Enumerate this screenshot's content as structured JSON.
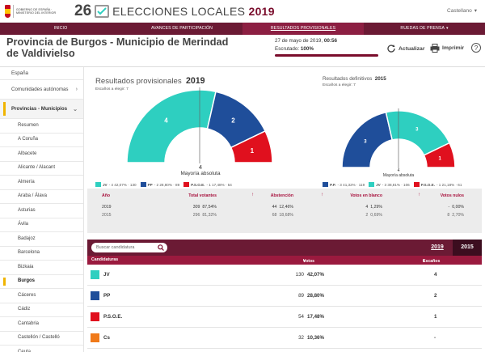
{
  "header": {
    "gov_text": "GOBIERNO DE ESPAÑA · MINISTERIO DEL INTERIOR",
    "brand_number": "26",
    "brand_elecciones": "ELECCIONES",
    "brand_locales": "LOCALES",
    "brand_year": "2019",
    "language": "Castellano"
  },
  "nav": [
    {
      "label": "INICIO"
    },
    {
      "label": "AVANCES DE PARTICIPACIÓN"
    },
    {
      "label": "RESULTADOS PROVISIONALES",
      "active": true
    },
    {
      "label": "RUEDAS DE PRENSA"
    }
  ],
  "page": {
    "title": "Provincia de Burgos - Municipio de Merindad de Valdivielso",
    "date_prefix": "27 de mayo de 2019,",
    "time": "00:56",
    "scrutiny_label": "Escrutado:",
    "scrutiny_value": "100%",
    "scrutiny_fraction": 1.0,
    "refresh_label": "Actualizar",
    "print_label": "Imprimir",
    "help_label": "?"
  },
  "sidebar": [
    {
      "label": "España",
      "level": "top"
    },
    {
      "label": "Comunidades autónomas",
      "level": "top",
      "chevron": "›"
    },
    {
      "label": "Provincias - Municipios",
      "level": "top",
      "chevron": "⌄",
      "selected": true
    },
    {
      "label": "Resumen",
      "level": "sub"
    },
    {
      "label": "A Coruña",
      "level": "sub"
    },
    {
      "label": "Albacete",
      "level": "sub"
    },
    {
      "label": "Alicante / Alacant",
      "level": "sub"
    },
    {
      "label": "Almería",
      "level": "sub"
    },
    {
      "label": "Araba / Álava",
      "level": "sub"
    },
    {
      "label": "Asturias",
      "level": "sub"
    },
    {
      "label": "Ávila",
      "level": "sub"
    },
    {
      "label": "Badajoz",
      "level": "sub"
    },
    {
      "label": "Barcelona",
      "level": "sub"
    },
    {
      "label": "Bizkaia",
      "level": "sub"
    },
    {
      "label": "Burgos",
      "level": "sub",
      "selected": true
    },
    {
      "label": "Cáceres",
      "level": "sub"
    },
    {
      "label": "Cádiz",
      "level": "sub"
    },
    {
      "label": "Cantabria",
      "level": "sub"
    },
    {
      "label": "Castellón / Castelló",
      "level": "sub"
    },
    {
      "label": "Ceuta",
      "level": "sub"
    }
  ],
  "provisional": {
    "title": "Resultados provisionales",
    "year": "2019",
    "seats_label": "Escaños a elegir: 7",
    "majority_value": "4",
    "majority_label": "Mayoría absoluta",
    "legend": [
      {
        "name": "JV",
        "text": "- 4 42,07% · 130",
        "color": "#2ecfc0"
      },
      {
        "name": "PP",
        "text": "- 2 28,80% · 89",
        "color": "#1f4e9a"
      },
      {
        "name": "P.S.O.E.",
        "text": "- 1 17,48% · 54",
        "color": "#e0101e"
      }
    ]
  },
  "definitive": {
    "title": "Resultados definitivos",
    "year": "2015",
    "seats_label": "Escaños a elegir: 7",
    "majority_value": "4",
    "majority_label": "Mayoría absoluta",
    "legend": [
      {
        "name": "P.P.",
        "text": "- 3 41,32% · 119",
        "color": "#1f4e9a"
      },
      {
        "name": "JV",
        "text": "- 3 38,81% · 106",
        "color": "#2ecfc0"
      },
      {
        "name": "P.S.O.E.",
        "text": "- 1 21,18% · 61",
        "color": "#e0101e"
      }
    ]
  },
  "summary": {
    "headers": {
      "year": "Año",
      "total": "Total votantes",
      "abst": "Abstención",
      "blank": "Votos en blanco",
      "null": "Votos nulos"
    },
    "rows": [
      {
        "year": "2019",
        "total": "309",
        "total_pct": "87,54%",
        "abst": "44",
        "abst_pct": "12,46%",
        "blank": "4",
        "blank_pct": "1,29%",
        "null": "-",
        "null_pct": "0,00%"
      },
      {
        "year": "2015",
        "total": "296",
        "total_pct": "81,32%",
        "abst": "68",
        "abst_pct": "18,68%",
        "blank": "2",
        "blank_pct": "0,69%",
        "null": "8",
        "null_pct": "2,70%"
      }
    ]
  },
  "candidates": {
    "search_placeholder": "Buscar candidatura",
    "tab_2019": "2019",
    "tab_2015": "2015",
    "col_party": "Candidaturas",
    "col_votes": "Votos",
    "col_seats": "Escaños",
    "rows": [
      {
        "party": "JV",
        "votes": "130",
        "pct": "42,07%",
        "seats": "4",
        "color": "#2ecfc0"
      },
      {
        "party": "PP",
        "votes": "89",
        "pct": "28,80%",
        "seats": "2",
        "color": "#1f4e9a"
      },
      {
        "party": "P.S.O.E.",
        "votes": "54",
        "pct": "17,48%",
        "seats": "1",
        "color": "#e0101e"
      },
      {
        "party": "Cs",
        "votes": "32",
        "pct": "10,36%",
        "seats": "-",
        "color": "#f07a1a"
      }
    ]
  },
  "chart_data": [
    {
      "type": "pie",
      "variant": "semicircle",
      "title": "Resultados provisionales 2019",
      "categories": [
        "JV",
        "PP",
        "P.S.O.E."
      ],
      "values": [
        4,
        2,
        1
      ],
      "colors": [
        "#2ecfc0",
        "#1f4e9a",
        "#e0101e"
      ]
    },
    {
      "type": "pie",
      "variant": "semicircle",
      "title": "Resultados definitivos 2015",
      "categories": [
        "P.P.",
        "JV",
        "P.S.O.E."
      ],
      "values": [
        3,
        3,
        1
      ],
      "colors": [
        "#1f4e9a",
        "#2ecfc0",
        "#e0101e"
      ]
    }
  ]
}
